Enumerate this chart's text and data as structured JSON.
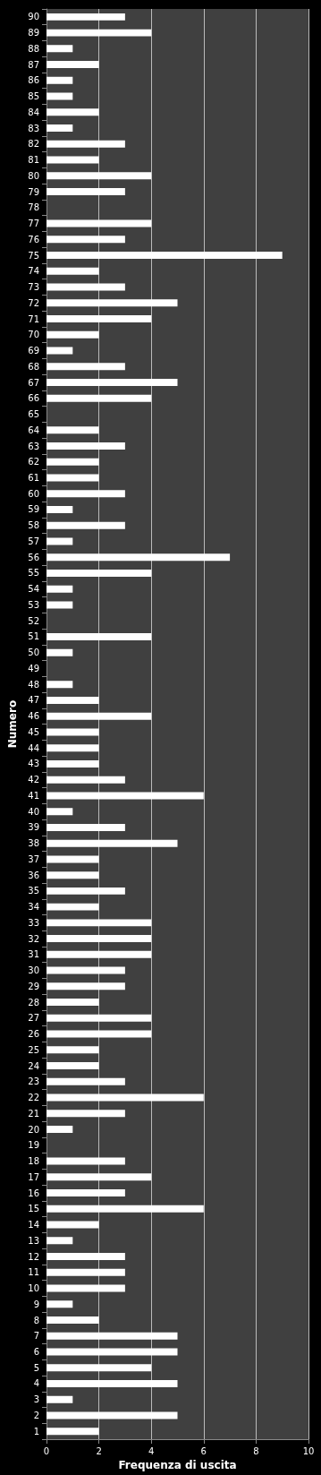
{
  "chart_data": {
    "type": "bar",
    "orientation": "horizontal",
    "xlabel": "Frequenza di uscita",
    "ylabel": "Numero",
    "categories": [
      "90",
      "89",
      "88",
      "87",
      "86",
      "85",
      "84",
      "83",
      "82",
      "81",
      "80",
      "79",
      "78",
      "77",
      "76",
      "75",
      "74",
      "73",
      "72",
      "71",
      "70",
      "69",
      "68",
      "67",
      "66",
      "65",
      "64",
      "63",
      "62",
      "61",
      "60",
      "59",
      "58",
      "57",
      "56",
      "55",
      "54",
      "53",
      "52",
      "51",
      "50",
      "49",
      "48",
      "47",
      "46",
      "45",
      "44",
      "43",
      "42",
      "41",
      "40",
      "39",
      "38",
      "37",
      "36",
      "35",
      "34",
      "33",
      "32",
      "31",
      "30",
      "29",
      "28",
      "27",
      "26",
      "25",
      "24",
      "23",
      "22",
      "21",
      "20",
      "19",
      "18",
      "17",
      "16",
      "15",
      "14",
      "13",
      "12",
      "11",
      "10",
      "9",
      "8",
      "7",
      "6",
      "5",
      "4",
      "3",
      "2",
      "1"
    ],
    "values": [
      3,
      4,
      1,
      2,
      1,
      1,
      2,
      1,
      3,
      2,
      4,
      3,
      0,
      4,
      3,
      9,
      2,
      3,
      5,
      4,
      2,
      1,
      3,
      5,
      4,
      0,
      2,
      3,
      2,
      2,
      3,
      1,
      3,
      1,
      7,
      4,
      1,
      1,
      0,
      4,
      1,
      0,
      1,
      2,
      4,
      2,
      2,
      2,
      3,
      6,
      1,
      3,
      5,
      2,
      2,
      3,
      2,
      4,
      4,
      4,
      3,
      3,
      2,
      4,
      4,
      2,
      2,
      3,
      6,
      3,
      1,
      0,
      3,
      4,
      3,
      6,
      2,
      1,
      3,
      3,
      3,
      1,
      2,
      5,
      5,
      4,
      5,
      1,
      5,
      2
    ],
    "color": "#ffffff",
    "xlim": [
      0,
      10
    ],
    "xticks": [
      0,
      2,
      4,
      6,
      8,
      10
    ],
    "grid": "x"
  }
}
